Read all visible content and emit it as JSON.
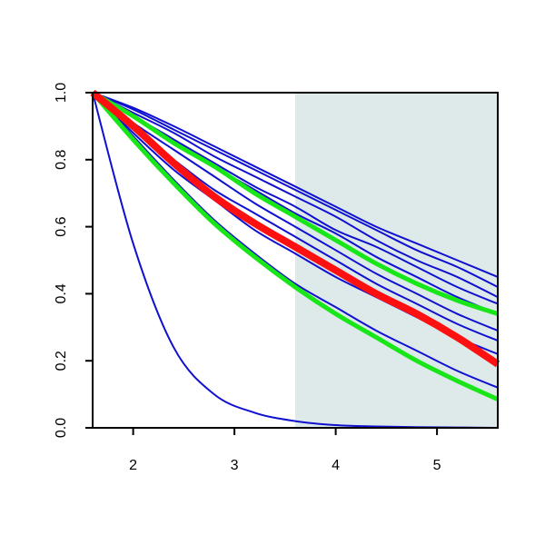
{
  "chart_data": {
    "type": "line",
    "title": "",
    "xlabel": "",
    "ylabel": "",
    "xlim": [
      1.6,
      5.6
    ],
    "ylim": [
      0.0,
      1.0
    ],
    "grid": false,
    "shaded_region": {
      "x": [
        3.6,
        5.6
      ],
      "color": "#deeaea"
    },
    "x_ticks": [
      {
        "value": 2,
        "label": "2"
      },
      {
        "value": 3,
        "label": "3"
      },
      {
        "value": 4,
        "label": "4"
      },
      {
        "value": 5,
        "label": "5"
      }
    ],
    "y_ticks": [
      {
        "value": 0.0,
        "label": "0.0"
      },
      {
        "value": 0.2,
        "label": "0.2"
      },
      {
        "value": 0.4,
        "label": "0.4"
      },
      {
        "value": 0.6,
        "label": "0.6"
      },
      {
        "value": 0.8,
        "label": "0.8"
      },
      {
        "value": 1.0,
        "label": "1.0"
      }
    ],
    "x": [
      1.6,
      2.0,
      2.4,
      2.8,
      3.2,
      3.6,
      4.0,
      4.4,
      4.8,
      5.2,
      5.6
    ],
    "series": [
      {
        "color": "#1010d0",
        "weight": "thin",
        "values": [
          1.0,
          0.55,
          0.24,
          0.1,
          0.045,
          0.02,
          0.008,
          0.004,
          0.002,
          0.001,
          0.0
        ]
      },
      {
        "color": "#1010d0",
        "weight": "thin",
        "values": [
          1.0,
          0.88,
          0.77,
          0.68,
          0.59,
          0.52,
          0.45,
          0.39,
          0.33,
          0.27,
          0.22
        ]
      },
      {
        "color": "#1010d0",
        "weight": "thin",
        "values": [
          1.0,
          0.89,
          0.8,
          0.71,
          0.64,
          0.57,
          0.5,
          0.43,
          0.37,
          0.31,
          0.26
        ]
      },
      {
        "color": "#1010d0",
        "weight": "thin",
        "values": [
          1.0,
          0.91,
          0.83,
          0.75,
          0.67,
          0.6,
          0.53,
          0.46,
          0.4,
          0.34,
          0.29
        ]
      },
      {
        "color": "#1010d0",
        "weight": "thin",
        "values": [
          1.0,
          0.93,
          0.86,
          0.78,
          0.71,
          0.64,
          0.58,
          0.51,
          0.45,
          0.39,
          0.34
        ]
      },
      {
        "color": "#1010d0",
        "weight": "thin",
        "values": [
          1.0,
          0.93,
          0.86,
          0.79,
          0.72,
          0.66,
          0.59,
          0.54,
          0.48,
          0.42,
          0.37
        ]
      },
      {
        "color": "#1010d0",
        "weight": "thin",
        "values": [
          1.0,
          0.94,
          0.88,
          0.81,
          0.75,
          0.69,
          0.63,
          0.56,
          0.5,
          0.45,
          0.39
        ]
      },
      {
        "color": "#1010d0",
        "weight": "thin",
        "values": [
          1.0,
          0.95,
          0.89,
          0.83,
          0.77,
          0.71,
          0.65,
          0.59,
          0.53,
          0.48,
          0.42
        ]
      },
      {
        "color": "#1010d0",
        "weight": "thin",
        "values": [
          1.0,
          0.955,
          0.9,
          0.84,
          0.78,
          0.72,
          0.66,
          0.6,
          0.55,
          0.5,
          0.45
        ]
      },
      {
        "color": "#1010d0",
        "weight": "thin",
        "values": [
          1.0,
          0.87,
          0.74,
          0.62,
          0.52,
          0.43,
          0.36,
          0.29,
          0.23,
          0.17,
          0.12
        ]
      },
      {
        "color": "#18e618",
        "weight": "thick",
        "values": [
          1.0,
          0.86,
          0.73,
          0.61,
          0.51,
          0.42,
          0.34,
          0.27,
          0.2,
          0.14,
          0.085
        ]
      },
      {
        "color": "#18e618",
        "weight": "thick",
        "values": [
          1.0,
          0.93,
          0.85,
          0.78,
          0.7,
          0.63,
          0.56,
          0.49,
          0.43,
          0.38,
          0.34
        ]
      },
      {
        "color": "#ff1010",
        "weight": "thicker",
        "values": [
          1.0,
          0.9,
          0.79,
          0.69,
          0.61,
          0.54,
          0.47,
          0.4,
          0.34,
          0.27,
          0.19
        ]
      }
    ]
  }
}
